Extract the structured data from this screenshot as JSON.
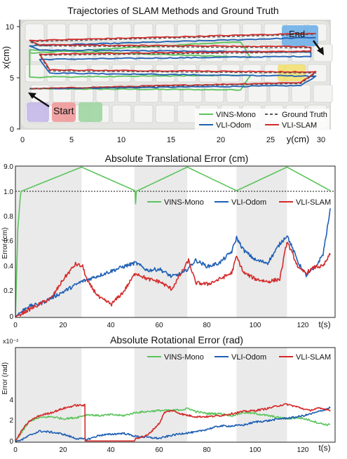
{
  "colors": {
    "vins": "#5cc45c",
    "vli_odom": "#1f5fb4",
    "vli_slam": "#d42a2a",
    "gt": "#555555",
    "shade": "#eaeaea"
  },
  "chart_data": [
    {
      "type": "line",
      "title": "Trajectories of SLAM Methods and Ground Truth",
      "xlabel": "y(cm)",
      "ylabel": "x(cm)",
      "xlim": [
        0,
        31
      ],
      "ylim": [
        0,
        10.5
      ],
      "xticks": [
        "0",
        "5",
        "10",
        "15",
        "20",
        "25",
        "30"
      ],
      "yticks": [
        "0",
        "5",
        "10"
      ],
      "annotations": [
        "Start",
        "End"
      ],
      "legend": [
        "VINS-Mono",
        "Ground Truth",
        "VLI-Odom",
        "VLI-SLAM"
      ],
      "legend_position": "bottom-right",
      "background": "keyboard photo",
      "series": [
        {
          "name": "Ground Truth",
          "x": [
            1,
            28,
            29.5,
            3,
            2,
            29,
            29,
            2,
            1,
            29.5
          ],
          "y": [
            3.9,
            4.4,
            5.4,
            5.6,
            7.1,
            7.4,
            7.8,
            8,
            8.4,
            9.1
          ]
        },
        {
          "name": "VLI-SLAM",
          "x": [
            1,
            28,
            29.5,
            3,
            2,
            29,
            29,
            2,
            1,
            29.5
          ],
          "y": [
            3.9,
            4.5,
            5.5,
            5.7,
            7.2,
            7.5,
            7.9,
            8.1,
            8.5,
            9.2
          ]
        },
        {
          "name": "VLI-Odom",
          "x": [
            1,
            28,
            29.5,
            3,
            2,
            29,
            29,
            2,
            1,
            29.5
          ],
          "y": [
            3.9,
            4.2,
            5.1,
            5.4,
            6.7,
            7.0,
            7.4,
            7.6,
            8.0,
            8.8
          ]
        },
        {
          "name": "VINS-Mono",
          "x": [
            1,
            22,
            23,
            1,
            1,
            23,
            22,
            1
          ],
          "y": [
            3.9,
            3.8,
            5.2,
            5.0,
            7.6,
            6.9,
            8.4,
            7.3
          ]
        }
      ]
    },
    {
      "type": "line",
      "title": "Absolute Translational Error (cm)",
      "xlabel": "t(s)",
      "ylabel": "Error (cm)",
      "xlim": [
        0,
        133
      ],
      "ylim": [
        0,
        9
      ],
      "broken_axis": true,
      "yticks": [
        "0",
        "0.2",
        "0.4",
        "0.6",
        "0.8",
        "1.0",
        "9.0"
      ],
      "xticks": [
        "0",
        "20",
        "40",
        "60",
        "80",
        "100",
        "120"
      ],
      "legend": [
        "VINS-Mono",
        "VLI-Odom",
        "VLI-SLAM"
      ],
      "legend_position": "top-right",
      "shaded_intervals": [
        [
          0,
          27.5
        ],
        [
          49.5,
          71.5
        ],
        [
          92,
          113
        ]
      ],
      "series": [
        {
          "name": "VINS-Mono",
          "x": [
            0,
            1,
            2,
            3,
            27.5,
            49.5,
            50,
            71.5,
            92,
            113,
            131
          ],
          "y": [
            0,
            0.7,
            0.95,
            1.2,
            8.9,
            1.3,
            0.9,
            8.9,
            1.2,
            8.9,
            1.2
          ]
        },
        {
          "name": "VLI-Odom",
          "x": [
            0,
            5,
            10,
            20,
            27.5,
            35,
            45,
            50,
            55,
            60,
            65,
            70,
            75,
            80,
            85,
            90,
            92,
            95,
            100,
            105,
            110,
            113,
            118,
            121,
            125,
            128,
            131
          ],
          "y": [
            0,
            0.08,
            0.1,
            0.2,
            0.28,
            0.33,
            0.4,
            0.43,
            0.37,
            0.38,
            0.32,
            0.35,
            0.45,
            0.4,
            0.43,
            0.52,
            0.63,
            0.53,
            0.45,
            0.43,
            0.58,
            0.65,
            0.42,
            0.33,
            0.4,
            0.5,
            0.85
          ]
        },
        {
          "name": "VLI-SLAM",
          "x": [
            0,
            5,
            10,
            15,
            20,
            25,
            28,
            30,
            35,
            40,
            45,
            50,
            55,
            60,
            65,
            70,
            72,
            75,
            80,
            85,
            90,
            92,
            95,
            100,
            105,
            110,
            113,
            118,
            121,
            125,
            128,
            131
          ],
          "y": [
            0,
            0.05,
            0.1,
            0.15,
            0.3,
            0.42,
            0.4,
            0.28,
            0.15,
            0.1,
            0.2,
            0.35,
            0.3,
            0.28,
            0.22,
            0.38,
            0.45,
            0.27,
            0.26,
            0.3,
            0.35,
            0.48,
            0.35,
            0.3,
            0.28,
            0.3,
            0.6,
            0.38,
            0.35,
            0.4,
            0.4,
            0.5
          ]
        }
      ]
    },
    {
      "type": "line",
      "title": "Absolute Rotational Error (rad)",
      "xlabel": "t(s)",
      "ylabel": "Error (rad)",
      "y_multiplier": "x10⁻²",
      "xlim": [
        0,
        133
      ],
      "ylim": [
        0,
        6
      ],
      "yticks": [
        "0",
        "2",
        "4"
      ],
      "xticks": [
        "0",
        "20",
        "40",
        "60",
        "80",
        "100",
        "120"
      ],
      "legend": [
        "VINS-Mono",
        "VLI-Odom",
        "VLI-SLAM"
      ],
      "legend_position": "top-right",
      "shaded_intervals": [
        [
          0,
          27.5
        ],
        [
          49.5,
          71.5
        ],
        [
          92,
          113
        ]
      ],
      "series": [
        {
          "name": "VINS-Mono",
          "x": [
            0,
            3,
            6,
            10,
            15,
            20,
            25,
            30,
            35,
            40,
            45,
            50,
            55,
            60,
            65,
            70,
            72,
            75,
            80,
            85,
            90,
            95,
            100,
            105,
            110,
            113,
            118,
            122,
            126,
            130,
            131
          ],
          "y": [
            0,
            1.0,
            2.0,
            2.3,
            2.4,
            2.2,
            2.3,
            2.6,
            2.5,
            2.6,
            2.5,
            2.8,
            2.9,
            3.0,
            3.0,
            3.1,
            3.2,
            2.9,
            2.7,
            2.7,
            2.5,
            2.8,
            2.7,
            2.5,
            2.3,
            2.2,
            2.3,
            2.1,
            1.8,
            1.6,
            1.7
          ]
        },
        {
          "name": "VLI-Odom",
          "x": [
            0,
            3,
            6,
            10,
            15,
            20,
            25,
            30,
            35,
            40,
            45,
            50,
            55,
            60,
            65,
            70,
            75,
            80,
            85,
            90,
            95,
            100,
            105,
            110,
            115,
            120,
            125,
            130,
            131
          ],
          "y": [
            0,
            0.2,
            0.6,
            1.0,
            0.9,
            0.7,
            0.3,
            0.2,
            0.6,
            0.7,
            0.8,
            0.5,
            0.4,
            0.3,
            0.6,
            0.8,
            0.9,
            1.2,
            1.5,
            1.5,
            1.6,
            1.9,
            2.0,
            2.2,
            2.3,
            2.5,
            2.8,
            3.2,
            3.3
          ]
        },
        {
          "name": "VLI-SLAM",
          "x": [
            0,
            3,
            6,
            10,
            15,
            20,
            25,
            28.9,
            29,
            35,
            40,
            45,
            49.5,
            50,
            55,
            60,
            62,
            65,
            70,
            75,
            80,
            85,
            90,
            95,
            100,
            105,
            110,
            113,
            118,
            122,
            126,
            130,
            131
          ],
          "y": [
            0,
            1.2,
            2.0,
            2.5,
            2.8,
            3.2,
            3.5,
            3.5,
            0.05,
            0.05,
            0.05,
            0.05,
            0.05,
            0.3,
            0.6,
            1.8,
            2.8,
            3.0,
            2.6,
            2.4,
            2.4,
            2.5,
            2.7,
            2.9,
            3.0,
            3.2,
            3.5,
            3.6,
            3.3,
            3.0,
            3.2,
            3.1,
            3.0
          ]
        }
      ]
    }
  ]
}
